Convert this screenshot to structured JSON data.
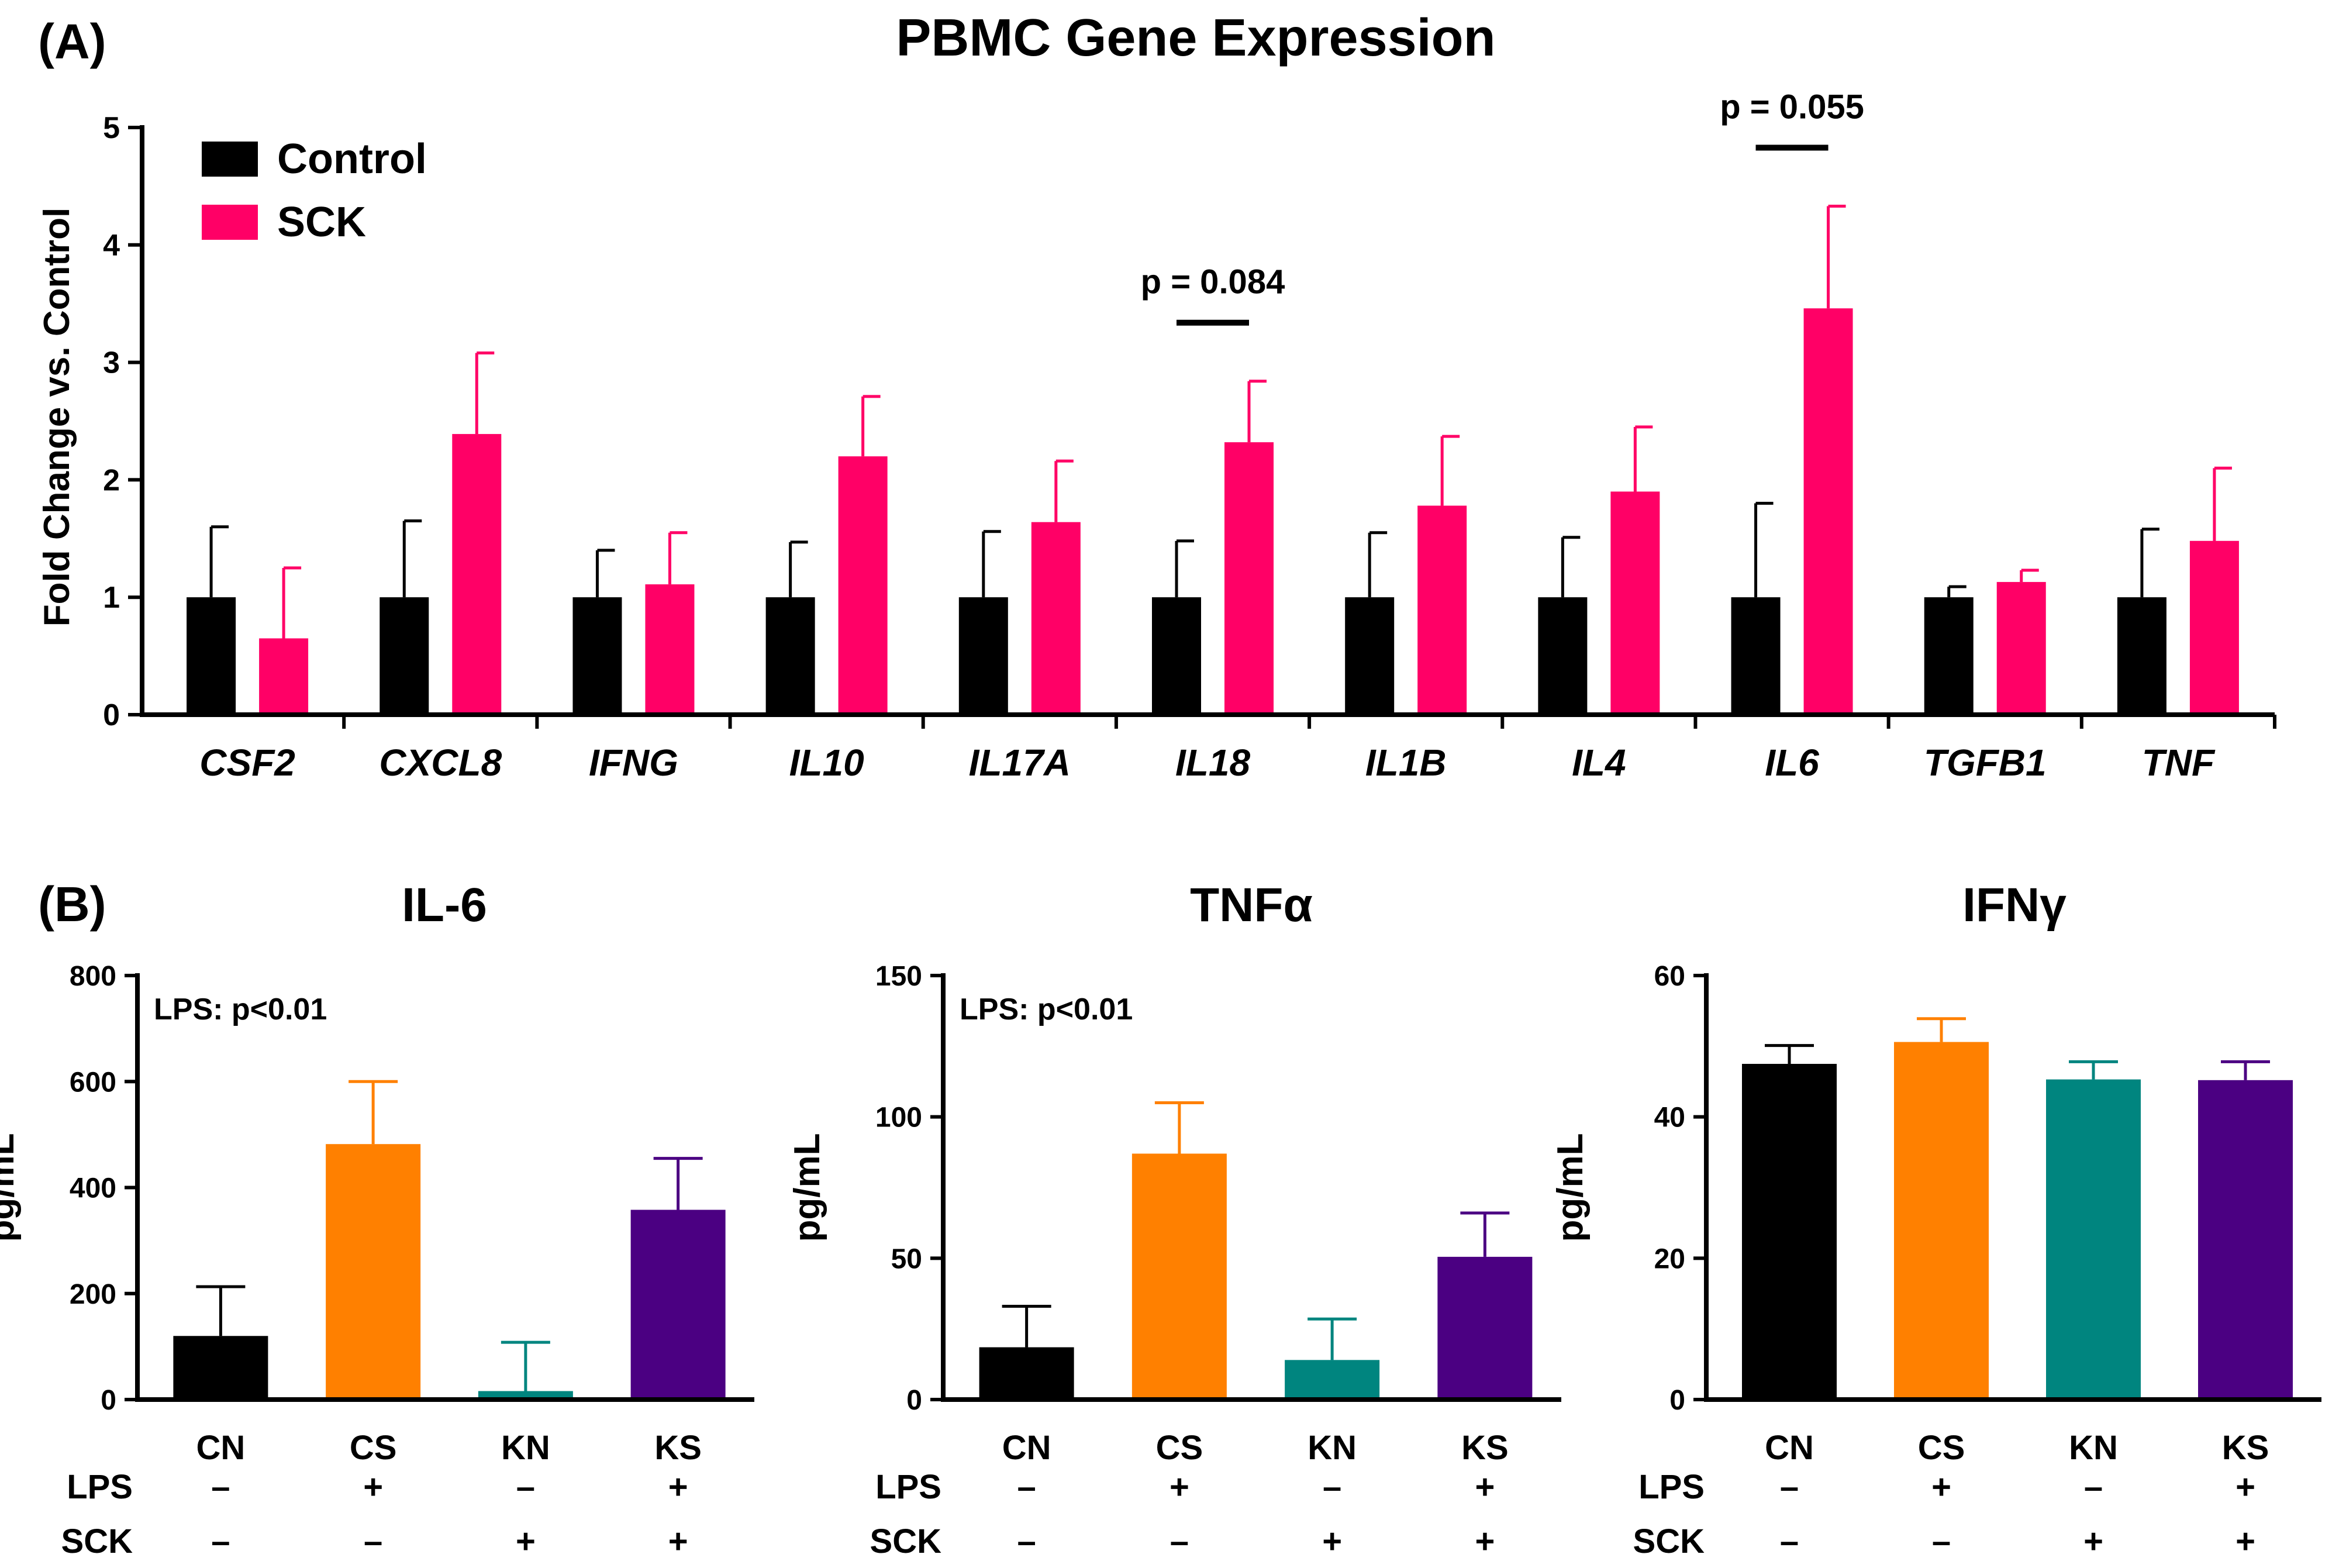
{
  "figure": {
    "panel_a_label": "(A)",
    "panel_b_label": "(B)"
  },
  "chart_data": [
    {
      "type": "bar",
      "title": "PBMC Gene Expression",
      "xlabel": "",
      "ylabel": "Fold Change vs. Control",
      "ylim": [
        0,
        5
      ],
      "yticks": [
        "0",
        "1",
        "2",
        "3",
        "4",
        "5"
      ],
      "legend_position": "top-left",
      "categories": [
        "CSF2",
        "CXCL8",
        "IFNG",
        "IL10",
        "IL17A",
        "IL18",
        "IL1B",
        "IL4",
        "IL6",
        "TGFB1",
        "TNF"
      ],
      "series": [
        {
          "name": "Control",
          "color": "#000000",
          "values": [
            1,
            1,
            1,
            1,
            1,
            1,
            1,
            1,
            1,
            1,
            1
          ],
          "errors": [
            0.6,
            0.65,
            0.4,
            0.47,
            0.56,
            0.48,
            0.55,
            0.51,
            0.8,
            0.09,
            0.58
          ]
        },
        {
          "name": "SCK",
          "color": "#ff0066",
          "values": [
            0.65,
            2.39,
            1.11,
            2.2,
            1.64,
            2.32,
            1.78,
            1.9,
            3.46,
            1.13,
            1.48
          ],
          "errors": [
            0.6,
            0.69,
            0.44,
            0.51,
            0.52,
            0.52,
            0.59,
            0.55,
            0.87,
            0.1,
            0.62
          ]
        }
      ],
      "annotations": [
        {
          "text": "p = 0.084",
          "category": "IL18"
        },
        {
          "text": "p = 0.055",
          "category": "IL6"
        }
      ]
    },
    {
      "type": "bar",
      "title": "IL-6",
      "ylabel": "pg/mL",
      "ylim": [
        0,
        800
      ],
      "yticks": [
        "0",
        "200",
        "400",
        "600",
        "800"
      ],
      "annotation": "LPS: p<0.01",
      "categories": [
        "CN",
        "CS",
        "KN",
        "KS"
      ],
      "colors": [
        "#000000",
        "#ff8000",
        "#00857f",
        "#4b0082"
      ],
      "values": [
        120,
        482,
        16,
        358
      ],
      "errors": [
        93,
        118,
        92,
        97
      ],
      "row_labels": [
        "LPS",
        "SCK"
      ],
      "conditions": [
        [
          "–",
          "+",
          "–",
          "+"
        ],
        [
          "–",
          "–",
          "+",
          "+"
        ]
      ]
    },
    {
      "type": "bar",
      "title": "TNFα",
      "ylabel": "pg/mL",
      "ylim": [
        0,
        150
      ],
      "yticks": [
        "0",
        "50",
        "100",
        "150"
      ],
      "annotation": "LPS: p<0.01",
      "categories": [
        "CN",
        "CS",
        "KN",
        "KS"
      ],
      "colors": [
        "#000000",
        "#ff8000",
        "#00857f",
        "#4b0082"
      ],
      "values": [
        18.5,
        87,
        14,
        50.5
      ],
      "errors": [
        14.5,
        18,
        14.5,
        15.5
      ],
      "row_labels": [
        "LPS",
        "SCK"
      ],
      "conditions": [
        [
          "–",
          "+",
          "–",
          "+"
        ],
        [
          "–",
          "–",
          "+",
          "+"
        ]
      ]
    },
    {
      "type": "bar",
      "title": "IFNγ",
      "ylabel": "pg/mL",
      "ylim": [
        0,
        60
      ],
      "yticks": [
        "0",
        "20",
        "40",
        "60"
      ],
      "annotation": "",
      "categories": [
        "CN",
        "CS",
        "KN",
        "KS"
      ],
      "colors": [
        "#000000",
        "#ff8000",
        "#00857f",
        "#4b0082"
      ],
      "values": [
        47.5,
        50.6,
        45.3,
        45.2
      ],
      "errors": [
        2.6,
        3.3,
        2.5,
        2.6
      ],
      "row_labels": [
        "LPS",
        "SCK"
      ],
      "conditions": [
        [
          "–",
          "+",
          "–",
          "+"
        ],
        [
          "–",
          "–",
          "+",
          "+"
        ]
      ]
    }
  ]
}
